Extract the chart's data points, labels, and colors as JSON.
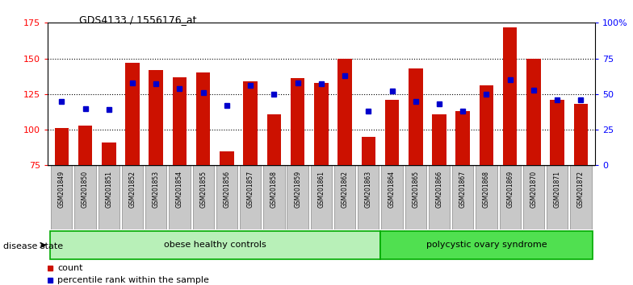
{
  "title": "GDS4133 / 1556176_at",
  "samples": [
    "GSM201849",
    "GSM201850",
    "GSM201851",
    "GSM201852",
    "GSM201853",
    "GSM201854",
    "GSM201855",
    "GSM201856",
    "GSM201857",
    "GSM201858",
    "GSM201859",
    "GSM201861",
    "GSM201862",
    "GSM201863",
    "GSM201864",
    "GSM201865",
    "GSM201866",
    "GSM201867",
    "GSM201868",
    "GSM201869",
    "GSM201870",
    "GSM201871",
    "GSM201872"
  ],
  "counts": [
    101,
    103,
    91,
    147,
    142,
    137,
    140,
    85,
    134,
    111,
    136,
    133,
    150,
    95,
    121,
    143,
    111,
    113,
    131,
    172,
    150,
    121,
    118
  ],
  "percentile_ranks_pct": [
    45,
    40,
    39,
    58,
    57,
    54,
    51,
    42,
    56,
    50,
    58,
    57,
    63,
    38,
    52,
    45,
    43,
    38,
    50,
    60,
    53,
    46,
    46
  ],
  "group1_label": "obese healthy controls",
  "group1_count": 14,
  "group2_label": "polycystic ovary syndrome",
  "group2_count": 9,
  "disease_state_label": "disease state",
  "ylim_left": [
    75,
    175
  ],
  "ylim_right": [
    0,
    100
  ],
  "yticks_left": [
    75,
    100,
    125,
    150,
    175
  ],
  "yticks_right": [
    0,
    25,
    50,
    75,
    100
  ],
  "ytick_right_labels": [
    "0",
    "25",
    "50",
    "75",
    "100%"
  ],
  "bar_color": "#cc1100",
  "point_color": "#0000cc",
  "bg_color": "#ffffff",
  "group1_color": "#b8f0b8",
  "group2_color": "#50e050",
  "group_edge_color": "#00aa00",
  "legend_count_label": "count",
  "legend_pct_label": "percentile rank within the sample",
  "xtick_bg": "#c8c8c8"
}
